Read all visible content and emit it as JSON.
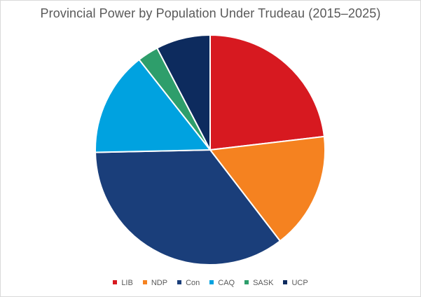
{
  "chart_data": {
    "type": "pie",
    "title": "Provincial Power by Population Under Trudeau (2015–2025)",
    "categories": [
      "LIB",
      "NDP",
      "Con",
      "CAQ",
      "SASK",
      "UCP"
    ],
    "values": [
      24.2,
      17.2,
      36.7,
      15.4,
      3.1,
      8.0
    ],
    "unit": "percent of pie (estimated)",
    "start_angle_deg": 0,
    "direction": "clockwise from top",
    "slice_order": [
      "LIB",
      "NDP",
      "Con",
      "CAQ",
      "SASK",
      "UCP"
    ],
    "colors": {
      "LIB": "#d71920",
      "NDP": "#f58220",
      "Con": "#1a3e7a",
      "CAQ": "#00a2e0",
      "SASK": "#2e9e6b",
      "UCP": "#0d2b5e"
    },
    "slice_stroke_color": "#ffffff",
    "legend": {
      "position": "bottom",
      "entries": [
        "LIB",
        "NDP",
        "Con",
        "CAQ",
        "SASK",
        "UCP"
      ]
    }
  }
}
